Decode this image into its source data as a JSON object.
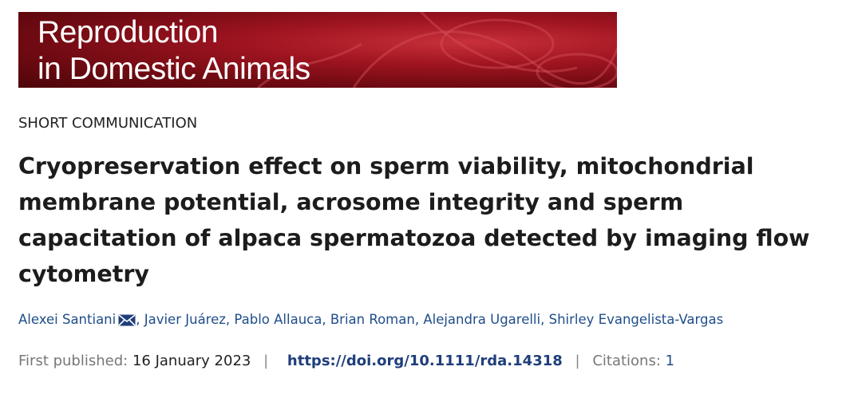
{
  "header": {
    "journal_line1": "Reproduction",
    "journal_line2": "in Domestic Animals"
  },
  "article": {
    "type": "SHORT COMMUNICATION",
    "title": "Cryopreservation effect on sperm viability, mitochondrial membrane potential, acrosome integrity and sperm capacitation of alpaca spermatozoa detected by imaging flow cytometry",
    "author_separator": ",",
    "authors": [
      "Alexei Santiani",
      "Javier Juárez",
      "Pablo Allauca",
      "Brian Roman",
      "Alejandra Ugarelli",
      "Shirley Evangelista-Vargas"
    ],
    "meta_separator": "|",
    "published_label": "First published:",
    "published_date": "16 January 2023",
    "doi": "https://doi.org/10.1111/rda.14318",
    "citations_label": "Citations:",
    "citations": 1
  }
}
